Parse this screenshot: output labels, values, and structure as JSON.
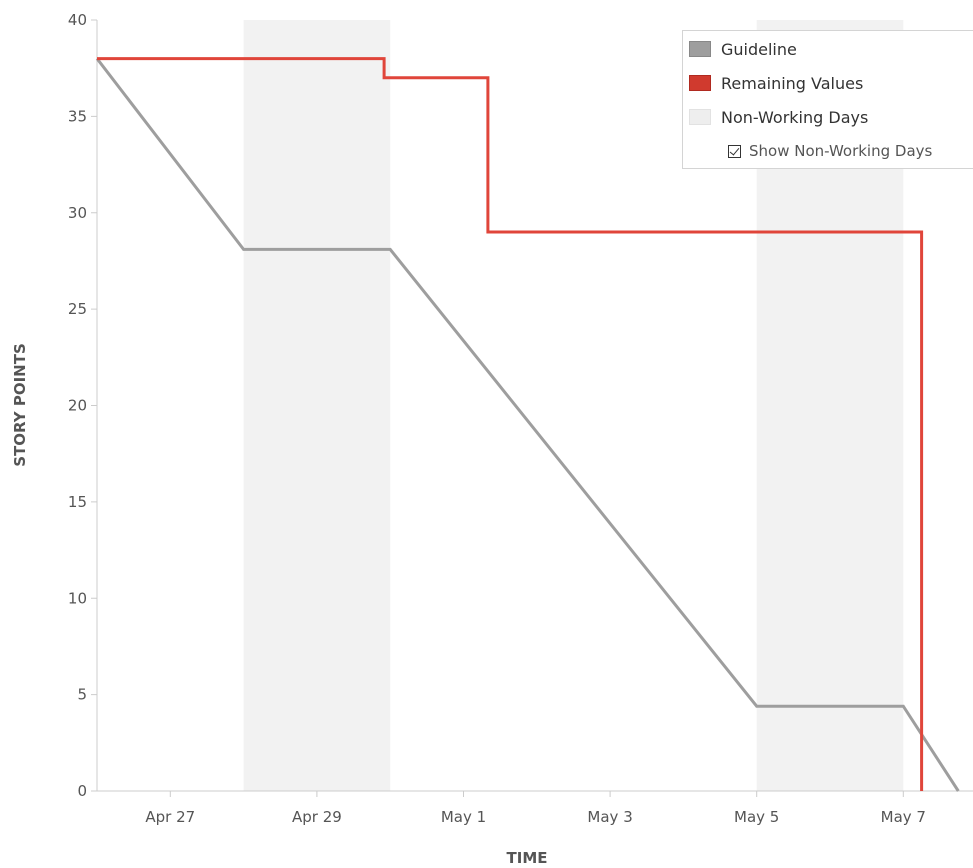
{
  "chart_data": {
    "type": "line",
    "xlabel": "TIME",
    "ylabel": "STORY POINTS",
    "ylim": [
      0,
      40
    ],
    "yticks": [
      0,
      5,
      10,
      15,
      20,
      25,
      30,
      35,
      40
    ],
    "xlim": [
      "2023-04-26",
      "2023-05-07"
    ],
    "xtick_labels": [
      "Apr 27",
      "Apr 29",
      "May 1",
      "May 3",
      "May 5",
      "May 7"
    ],
    "xtick_dates": [
      "2023-04-27",
      "2023-04-29",
      "2023-05-01",
      "2023-05-03",
      "2023-05-05",
      "2023-05-07"
    ],
    "non_working_days": [
      {
        "start": "2023-04-28",
        "end": "2023-04-30"
      },
      {
        "start": "2023-05-05",
        "end": "2023-05-07"
      }
    ],
    "series": [
      {
        "name": "Guideline",
        "color": "#9e9e9e",
        "points": [
          {
            "x": "2023-04-26",
            "y": 38
          },
          {
            "x": "2023-04-28",
            "y": 28.1
          },
          {
            "x": "2023-04-30",
            "y": 28.1
          },
          {
            "x": "2023-05-05",
            "y": 4.4
          },
          {
            "x": "2023-05-07",
            "y": 4.4
          },
          {
            "x": "2023-05-07 18:00",
            "y": 0
          }
        ]
      },
      {
        "name": "Remaining Values",
        "color": "#e0453a",
        "points": [
          {
            "x": "2023-04-26",
            "y": 38
          },
          {
            "x": "2023-04-29 22:00",
            "y": 38
          },
          {
            "x": "2023-04-29 22:00",
            "y": 37
          },
          {
            "x": "2023-05-01 08:00",
            "y": 37
          },
          {
            "x": "2023-05-01 08:00",
            "y": 29
          },
          {
            "x": "2023-05-07 06:00",
            "y": 29
          },
          {
            "x": "2023-05-07 06:00",
            "y": 0
          }
        ]
      }
    ],
    "legend": {
      "placement": "top-right",
      "entries": [
        {
          "label": "Guideline",
          "color": "#9e9e9e"
        },
        {
          "label": "Remaining Values",
          "color": "#d03a2e"
        },
        {
          "label": "Non-Working Days",
          "color": "#eeeeee"
        }
      ],
      "toggle_label": "Show Non-Working Days",
      "toggle_checked": true
    },
    "grid": false,
    "nonworking_color": "#f2f2f2"
  }
}
